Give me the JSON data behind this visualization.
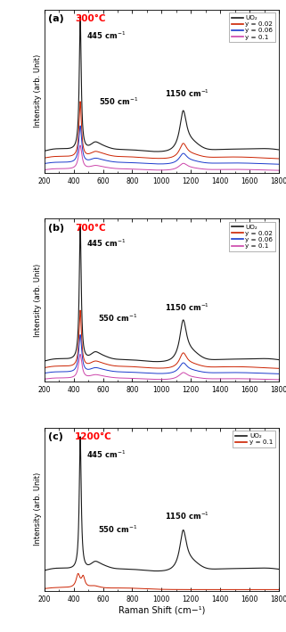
{
  "panels": [
    {
      "label": "(a)",
      "temp": "300°C",
      "temp_color": "#ff0000",
      "legend_entries": [
        "UO₂",
        "y = 0.02",
        "y = 0.06",
        "y = 0.1"
      ],
      "legend_colors": [
        "#1a1a1a",
        "#cc2200",
        "#1a3acc",
        "#cc44aa"
      ],
      "n_curves": 4
    },
    {
      "label": "(b)",
      "temp": "700°C",
      "temp_color": "#ff0000",
      "legend_entries": [
        "UO₂",
        "y = 0.02",
        "y = 0.06",
        "y = 0.1"
      ],
      "legend_colors": [
        "#1a1a1a",
        "#cc2200",
        "#1a3acc",
        "#cc44aa"
      ],
      "n_curves": 4
    },
    {
      "label": "(c)",
      "temp": "1200°C",
      "temp_color": "#ff0000",
      "legend_entries": [
        "UO₂",
        "y = 0.1"
      ],
      "legend_colors": [
        "#1a1a1a",
        "#cc2200"
      ],
      "n_curves": 2
    }
  ],
  "xlabel": "Raman Shift (cm−¹)",
  "ylabel": "Intensity (arb. Unit)",
  "xlim": [
    200,
    1800
  ],
  "xticks": [
    200,
    400,
    600,
    800,
    1000,
    1200,
    1400,
    1600,
    1800
  ],
  "background_color": "#ffffff"
}
